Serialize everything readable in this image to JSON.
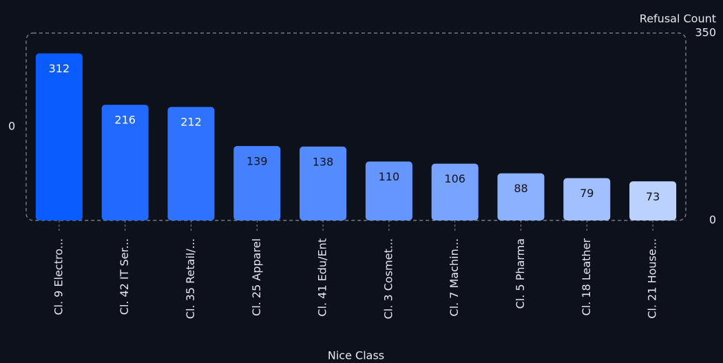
{
  "chart_data": {
    "type": "bar",
    "x_label": "Nice Class",
    "y_label": "Refusal Count",
    "categories": [
      "Cl. 9 Electro...",
      "Cl. 42 IT Ser...",
      "Cl. 35 Retail/...",
      "Cl. 25 Apparel",
      "Cl. 41 Edu/Ent",
      "Cl. 3 Cosmet...",
      "Cl. 7 Machin...",
      "Cl. 5 Pharma",
      "Cl. 18 Leather",
      "Cl. 21 House..."
    ],
    "values": [
      312,
      216,
      212,
      139,
      138,
      110,
      106,
      88,
      79,
      73
    ],
    "colors": [
      "#0a5cff",
      "#2169ff",
      "#2f72ff",
      "#4581ff",
      "#548bff",
      "#6596ff",
      "#78a3ff",
      "#8cb1ff",
      "#a2c0ff",
      "#bbd1ff"
    ],
    "ylim": [
      0,
      350
    ],
    "yticks": [
      0,
      350
    ],
    "y2lim": [
      -1,
      1
    ],
    "y2ticks": [
      0
    ]
  }
}
